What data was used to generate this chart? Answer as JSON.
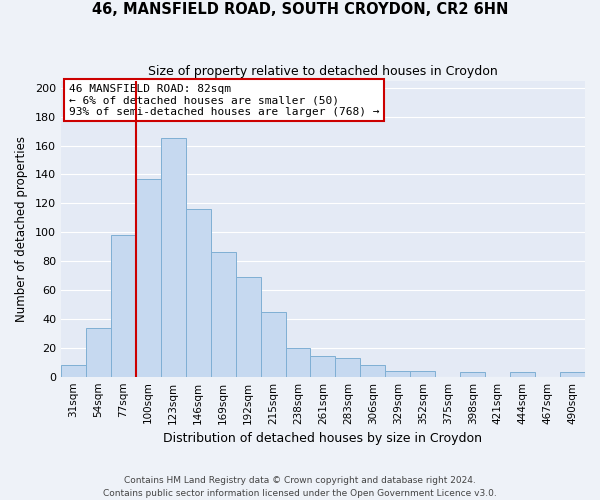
{
  "title": "46, MANSFIELD ROAD, SOUTH CROYDON, CR2 6HN",
  "subtitle": "Size of property relative to detached houses in Croydon",
  "xlabel": "Distribution of detached houses by size in Croydon",
  "ylabel": "Number of detached properties",
  "bar_labels": [
    "31sqm",
    "54sqm",
    "77sqm",
    "100sqm",
    "123sqm",
    "146sqm",
    "169sqm",
    "192sqm",
    "215sqm",
    "238sqm",
    "261sqm",
    "283sqm",
    "306sqm",
    "329sqm",
    "352sqm",
    "375sqm",
    "398sqm",
    "421sqm",
    "444sqm",
    "467sqm",
    "490sqm"
  ],
  "bar_values": [
    8,
    34,
    98,
    137,
    165,
    116,
    86,
    69,
    45,
    20,
    14,
    13,
    8,
    4,
    4,
    0,
    3,
    0,
    3,
    0,
    3
  ],
  "bar_color": "#c6d9f0",
  "bar_edge_color": "#7fafd4",
  "vline_x": 2.5,
  "vline_color": "#cc0000",
  "ylim": [
    0,
    205
  ],
  "yticks": [
    0,
    20,
    40,
    60,
    80,
    100,
    120,
    140,
    160,
    180,
    200
  ],
  "annotation_title": "46 MANSFIELD ROAD: 82sqm",
  "annotation_line1": "← 6% of detached houses are smaller (50)",
  "annotation_line2": "93% of semi-detached houses are larger (768) →",
  "annotation_box_color": "#ffffff",
  "annotation_box_edge": "#cc0000",
  "footer_line1": "Contains HM Land Registry data © Crown copyright and database right 2024.",
  "footer_line2": "Contains public sector information licensed under the Open Government Licence v3.0.",
  "background_color": "#eef2f8",
  "plot_bg_color": "#e4eaf5",
  "grid_color": "#ffffff"
}
